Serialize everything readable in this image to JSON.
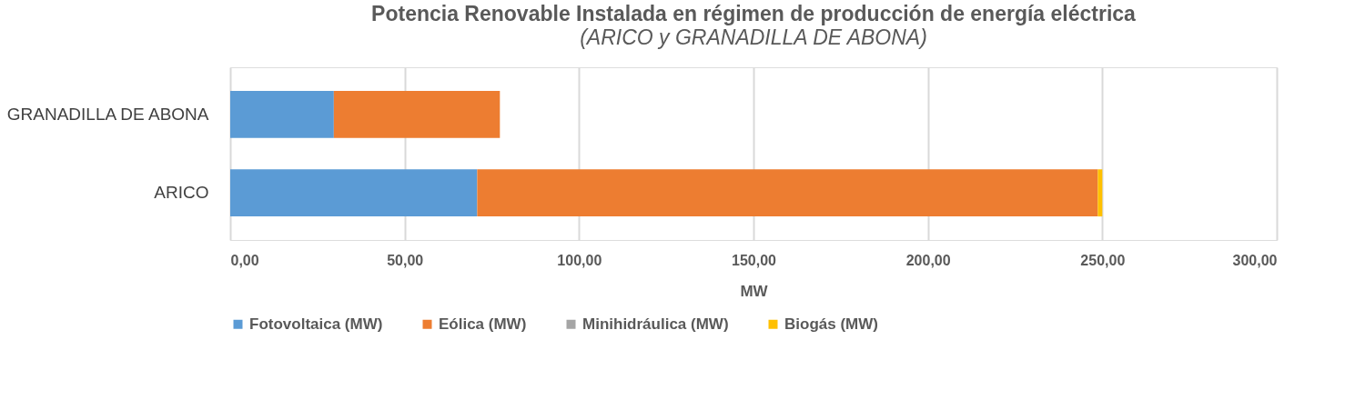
{
  "chart_data": {
    "type": "bar",
    "orientation": "horizontal",
    "stacked": true,
    "title": "Potencia Renovable Instalada en régimen de producción de energía eléctrica",
    "subtitle": "(ARICO y GRANADILLA DE ABONA)",
    "xlabel": "MW",
    "categories": [
      "GRANADILLA DE ABONA",
      "ARICO"
    ],
    "series": [
      {
        "name": "Fotovoltaica (MW)",
        "color": "#5b9bd5",
        "values": [
          29.7,
          70.8
        ]
      },
      {
        "name": "Eólica (MW)",
        "color": "#ed7d31",
        "values": [
          47.6,
          177.9
        ]
      },
      {
        "name": "Minihidráulica (MW)",
        "color": "#a5a5a5",
        "values": [
          0,
          0
        ]
      },
      {
        "name": "Biogás (MW)",
        "color": "#ffc000",
        "values": [
          0,
          1.3
        ]
      }
    ],
    "xlim": [
      0,
      300
    ],
    "xticks": [
      {
        "value": 0,
        "label": "0,00"
      },
      {
        "value": 50,
        "label": "50,00"
      },
      {
        "value": 100,
        "label": "100,00"
      },
      {
        "value": 150,
        "label": "150,00"
      },
      {
        "value": 200,
        "label": "200,00"
      },
      {
        "value": 250,
        "label": "250,00"
      },
      {
        "value": 300,
        "label": "300,00"
      }
    ],
    "grid": "x",
    "legend": "bottom"
  }
}
